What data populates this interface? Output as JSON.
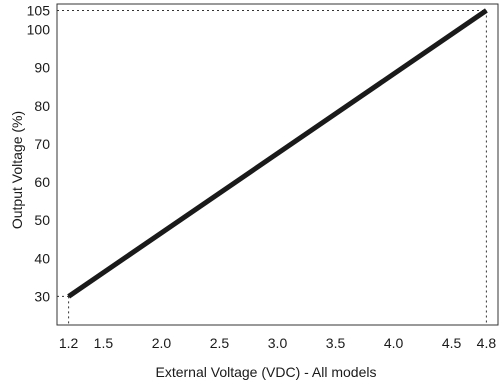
{
  "chart_data": {
    "type": "line",
    "title": "",
    "xlabel": "External Voltage (VDC) - All models",
    "ylabel": "Output Voltage (%)",
    "xlim": [
      1.1,
      4.9
    ],
    "ylim": [
      22.5,
      106.7
    ],
    "x_ticks": [
      1.2,
      1.5,
      2.0,
      2.5,
      3.0,
      3.5,
      4.0,
      4.5,
      4.8
    ],
    "x_tick_labels": [
      "1.2",
      "1.5",
      "2.0",
      "2.5",
      "3.0",
      "3.5",
      "4.0",
      "4.5",
      "4.8"
    ],
    "y_ticks": [
      30,
      40,
      50,
      60,
      70,
      80,
      90,
      100,
      105
    ],
    "y_tick_labels": [
      "30",
      "40",
      "50",
      "60",
      "70",
      "80",
      "90",
      "100",
      "105"
    ],
    "series": [
      {
        "x": [
          1.2,
          4.8
        ],
        "y": [
          30,
          105
        ]
      }
    ],
    "reference_lines": [
      {
        "from": [
          1.1,
          30
        ],
        "to": [
          1.2,
          30
        ]
      },
      {
        "from": [
          1.2,
          30
        ],
        "to": [
          1.2,
          22.5
        ]
      },
      {
        "from": [
          1.1,
          105
        ],
        "to": [
          4.8,
          105
        ]
      },
      {
        "from": [
          4.8,
          105
        ],
        "to": [
          4.8,
          22.5
        ]
      }
    ],
    "grid": false,
    "legend": "none",
    "colors": {
      "line": "#1a1a1a",
      "axis": "#333333",
      "reference": "#333333"
    }
  }
}
